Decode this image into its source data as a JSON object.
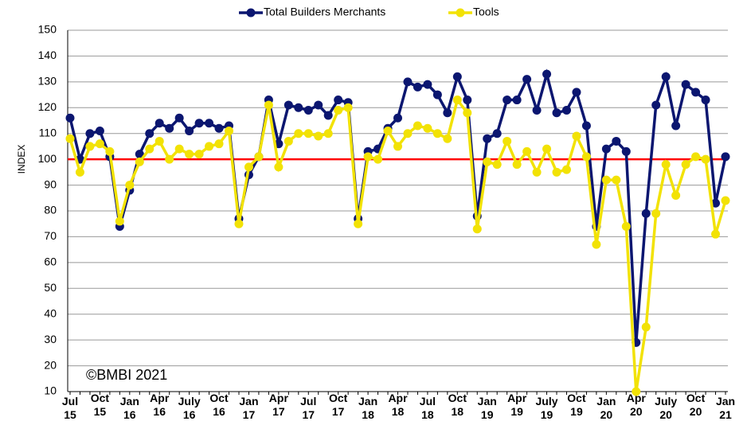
{
  "chart_data": {
    "type": "line",
    "y_label": "INDEX",
    "annotation": "©BMBI 2021",
    "categories": [
      "Jul 15",
      null,
      null,
      "Oct 15",
      null,
      null,
      "Jan 16",
      null,
      null,
      "Apr 16",
      null,
      null,
      "July 16",
      null,
      null,
      "Oct 16",
      null,
      null,
      "Jan 17",
      null,
      null,
      "Apr 17",
      null,
      null,
      "Jul 17",
      null,
      null,
      "Oct 17",
      null,
      null,
      "Jan 18",
      null,
      null,
      "Apr 18",
      null,
      null,
      "Jul 18",
      null,
      null,
      "Oct 18",
      null,
      null,
      "Jan 19",
      null,
      null,
      "Apr 19",
      null,
      null,
      "July 19",
      null,
      null,
      "Oct 19",
      null,
      null,
      "Jan 20",
      null,
      null,
      "Apr 20",
      null,
      null,
      "July 20",
      null,
      null,
      "Oct 20",
      null,
      null,
      "Jan 21"
    ],
    "series": [
      {
        "name": "Total Builders Merchants",
        "color": "#0b1670",
        "values": [
          116,
          100,
          110,
          111,
          101,
          74,
          88,
          102,
          110,
          114,
          112,
          116,
          111,
          114,
          114,
          112,
          113,
          77,
          94,
          101,
          123,
          106,
          121,
          120,
          119,
          121,
          117,
          123,
          122,
          77,
          103,
          104,
          112,
          116,
          130,
          128,
          129,
          125,
          118,
          132,
          123,
          78,
          108,
          110,
          123,
          123,
          131,
          119,
          133,
          118,
          119,
          126,
          113,
          74,
          104,
          107,
          103,
          29,
          79,
          121,
          132,
          113,
          129,
          126,
          123,
          83,
          101
        ]
      },
      {
        "name": "Tools",
        "color": "#f2e205",
        "values": [
          108,
          95,
          105,
          106,
          103,
          76,
          90,
          99,
          104,
          107,
          100,
          104,
          102,
          102,
          105,
          106,
          111,
          75,
          97,
          101,
          121,
          97,
          107,
          110,
          110,
          109,
          110,
          119,
          120,
          75,
          101,
          100,
          111,
          105,
          110,
          113,
          112,
          110,
          108,
          123,
          118,
          73,
          99,
          98,
          107,
          98,
          103,
          95,
          104,
          95,
          96,
          109,
          101,
          67,
          92,
          92,
          74,
          10,
          35,
          79,
          98,
          86,
          98,
          101,
          100,
          71,
          84
        ]
      }
    ],
    "ylim": [
      10,
      150
    ],
    "yticks": [
      10,
      20,
      30,
      40,
      50,
      60,
      70,
      80,
      90,
      100,
      110,
      120,
      130,
      140,
      150
    ],
    "grid": true,
    "reference_line": {
      "value": 100,
      "color": "#ff0000"
    },
    "legend": "top"
  }
}
